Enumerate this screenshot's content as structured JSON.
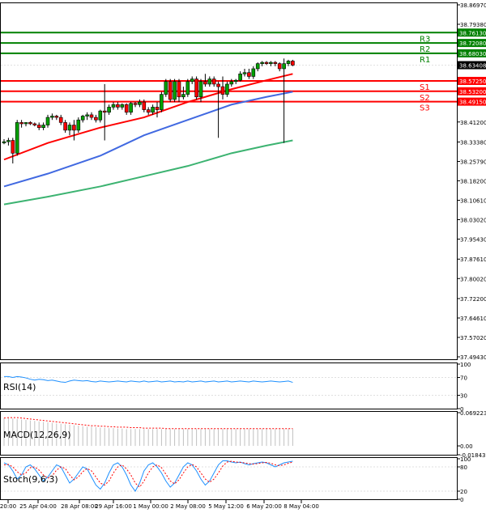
{
  "chart_data": {
    "type": "candlestick",
    "price_axis": {
      "ticks": [
        "38.86970",
        "38.79380",
        "38.71790",
        "38.64200",
        "38.56610",
        "38.49010",
        "38.41200",
        "38.33380",
        "38.25790",
        "38.18200",
        "38.10610",
        "38.03020",
        "37.95430",
        "37.87610",
        "37.80020",
        "37.72200",
        "37.64610",
        "37.57020",
        "37.49430"
      ],
      "ylim": [
        37.4943,
        38.8697
      ]
    },
    "time_axis": {
      "labels": [
        "20:00",
        "25 Apr 04:00",
        "28 Apr 08:00",
        "29 Apr 16:00",
        "1 May 00:00",
        "2 May 08:00",
        "5 May 12:00",
        "6 May 20:00",
        "8 May 04:00"
      ]
    },
    "levels": [
      {
        "name": "R3",
        "value": "38.76130",
        "color": "#008000"
      },
      {
        "name": "R2",
        "value": "38.72080",
        "color": "#008000"
      },
      {
        "name": "R1",
        "value": "38.68030",
        "color": "#008000"
      },
      {
        "name": "S1",
        "value": "38.57250",
        "color": "#ff0000"
      },
      {
        "name": "S2",
        "value": "38.53200",
        "color": "#ff0000"
      },
      {
        "name": "S3",
        "value": "38.49150",
        "color": "#ff0000"
      }
    ],
    "current_price": "38.63408",
    "candles": [
      [
        38.33,
        38.345,
        38.325,
        38.335
      ],
      [
        38.335,
        38.35,
        38.32,
        38.34
      ],
      [
        38.34,
        38.35,
        38.25,
        38.29
      ],
      [
        38.29,
        38.42,
        38.28,
        38.41
      ],
      [
        38.41,
        38.42,
        38.39,
        38.405
      ],
      [
        38.405,
        38.41,
        38.395,
        38.41
      ],
      [
        38.41,
        38.415,
        38.4,
        38.405
      ],
      [
        38.405,
        38.41,
        38.395,
        38.4
      ],
      [
        38.4,
        38.41,
        38.38,
        38.39
      ],
      [
        38.39,
        38.41,
        38.38,
        38.4
      ],
      [
        38.4,
        38.44,
        38.39,
        38.43
      ],
      [
        38.43,
        38.445,
        38.42,
        38.435
      ],
      [
        38.435,
        38.44,
        38.42,
        38.43
      ],
      [
        38.43,
        38.44,
        38.4,
        38.41
      ],
      [
        38.41,
        38.42,
        38.37,
        38.38
      ],
      [
        38.38,
        38.41,
        38.36,
        38.4
      ],
      [
        38.4,
        38.42,
        38.34,
        38.38
      ],
      [
        38.38,
        38.43,
        38.37,
        38.42
      ],
      [
        38.42,
        38.44,
        38.41,
        38.435
      ],
      [
        38.435,
        38.45,
        38.42,
        38.44
      ],
      [
        38.44,
        38.45,
        38.42,
        38.43
      ],
      [
        38.43,
        38.44,
        38.41,
        38.42
      ],
      [
        38.42,
        38.46,
        38.41,
        38.455
      ],
      [
        38.455,
        38.56,
        38.34,
        38.45
      ],
      [
        38.45,
        38.48,
        38.44,
        38.47
      ],
      [
        38.47,
        38.49,
        38.46,
        38.48
      ],
      [
        38.48,
        38.49,
        38.46,
        38.47
      ],
      [
        38.47,
        38.485,
        38.46,
        38.48
      ],
      [
        38.48,
        38.485,
        38.44,
        38.45
      ],
      [
        38.45,
        38.49,
        38.44,
        38.485
      ],
      [
        38.485,
        38.49,
        38.47,
        38.48
      ],
      [
        38.48,
        38.5,
        38.47,
        38.49
      ],
      [
        38.49,
        38.5,
        38.45,
        38.46
      ],
      [
        38.46,
        38.47,
        38.44,
        38.45
      ],
      [
        38.45,
        38.48,
        38.44,
        38.47
      ],
      [
        38.47,
        38.49,
        38.43,
        38.46
      ],
      [
        38.46,
        38.53,
        38.45,
        38.52
      ],
      [
        38.52,
        38.58,
        38.51,
        38.57
      ],
      [
        38.57,
        38.58,
        38.49,
        38.5
      ],
      [
        38.5,
        38.58,
        38.49,
        38.57
      ],
      [
        38.57,
        38.58,
        38.49,
        38.51
      ],
      [
        38.51,
        38.55,
        38.5,
        38.52
      ],
      [
        38.52,
        38.58,
        38.51,
        38.57
      ],
      [
        38.57,
        38.59,
        38.56,
        38.58
      ],
      [
        38.58,
        38.59,
        38.5,
        38.51
      ],
      [
        38.51,
        38.58,
        38.49,
        38.57
      ],
      [
        38.57,
        38.6,
        38.55,
        38.56
      ],
      [
        38.56,
        38.59,
        38.55,
        38.58
      ],
      [
        38.58,
        38.59,
        38.55,
        38.56
      ],
      [
        38.56,
        38.57,
        38.35,
        38.55
      ],
      [
        38.55,
        38.59,
        38.5,
        38.52
      ],
      [
        38.52,
        38.57,
        38.51,
        38.56
      ],
      [
        38.56,
        38.58,
        38.55,
        38.57
      ],
      [
        38.57,
        38.58,
        38.56,
        38.575
      ],
      [
        38.575,
        38.61,
        38.57,
        38.6
      ],
      [
        38.6,
        38.62,
        38.59,
        38.605
      ],
      [
        38.605,
        38.62,
        38.58,
        38.59
      ],
      [
        38.59,
        38.63,
        38.58,
        38.62
      ],
      [
        38.62,
        38.645,
        38.61,
        38.64
      ],
      [
        38.64,
        38.65,
        38.63,
        38.645
      ],
      [
        38.645,
        38.65,
        38.635,
        38.64
      ],
      [
        38.64,
        38.65,
        38.63,
        38.645
      ],
      [
        38.645,
        38.65,
        38.63,
        38.64
      ],
      [
        38.64,
        38.645,
        38.61,
        38.62
      ],
      [
        38.62,
        38.66,
        38.33,
        38.64
      ],
      [
        38.64,
        38.655,
        38.63,
        38.65
      ],
      [
        38.65,
        38.655,
        38.63,
        38.634
      ]
    ],
    "ma_series": [
      {
        "color": "#ff0000",
        "values": [
          [
            0,
            38.265
          ],
          [
            10,
            38.33
          ],
          [
            22,
            38.39
          ],
          [
            32,
            38.43
          ],
          [
            42,
            38.49
          ],
          [
            52,
            38.54
          ],
          [
            60,
            38.575
          ],
          [
            66,
            38.6
          ]
        ]
      },
      {
        "color": "#4169e1",
        "values": [
          [
            0,
            38.16
          ],
          [
            10,
            38.21
          ],
          [
            22,
            38.28
          ],
          [
            32,
            38.36
          ],
          [
            42,
            38.42
          ],
          [
            52,
            38.48
          ],
          [
            60,
            38.51
          ],
          [
            66,
            38.53
          ]
        ]
      },
      {
        "color": "#3cb371",
        "values": [
          [
            0,
            38.09
          ],
          [
            10,
            38.12
          ],
          [
            22,
            38.16
          ],
          [
            32,
            38.2
          ],
          [
            42,
            38.24
          ],
          [
            52,
            38.29
          ],
          [
            60,
            38.32
          ],
          [
            66,
            38.34
          ]
        ]
      }
    ],
    "indicators": [
      {
        "name": "RSI(14)",
        "ticks": [
          "100",
          "70",
          "30",
          "0"
        ],
        "ylim": [
          0,
          100
        ],
        "series_color": "#1e90ff",
        "values": [
          72,
          72,
          70,
          72,
          71,
          69,
          66,
          64,
          66,
          65,
          63,
          64,
          62,
          60,
          59,
          62,
          64,
          63,
          62,
          63,
          61,
          60,
          62,
          61,
          60,
          61,
          62,
          61,
          60,
          62,
          61,
          60,
          62,
          60,
          61,
          62,
          60,
          61,
          62,
          60,
          61,
          60,
          62,
          60,
          61,
          62,
          60,
          61,
          62,
          60,
          61,
          62,
          60,
          61,
          62,
          61,
          60,
          62,
          61,
          60,
          61,
          62,
          61,
          60,
          61,
          62,
          59
        ]
      },
      {
        "name": "MACD(12,26,9)",
        "ticks": [
          "0.069223",
          "0.00",
          "-0.018437"
        ],
        "ylim": [
          -0.018437,
          0.069223
        ],
        "series_color": "#ff0000",
        "histogram": [
          0.058,
          0.058,
          0.057,
          0.056,
          0.055,
          0.054,
          0.053,
          0.052,
          0.051,
          0.05,
          0.049,
          0.048,
          0.047,
          0.046,
          0.045,
          0.044,
          0.043,
          0.042,
          0.041,
          0.04,
          0.04,
          0.039,
          0.038,
          0.038,
          0.037,
          0.037,
          0.036,
          0.036,
          0.035,
          0.035,
          0.035,
          0.035,
          0.035,
          0.035,
          0.035,
          0.035,
          0.035,
          0.035,
          0.035,
          0.035,
          0.035,
          0.035,
          0.035,
          0.035,
          0.035,
          0.035,
          0.035,
          0.035,
          0.035,
          0.035,
          0.035,
          0.035,
          0.035,
          0.035,
          0.035,
          0.035,
          0.035,
          0.035,
          0.035,
          0.035,
          0.035,
          0.035,
          0.035,
          0.035,
          0.035,
          0.035,
          0.035
        ],
        "signal": [
          0.058,
          0.059,
          0.059,
          0.059,
          0.058,
          0.057,
          0.056,
          0.055,
          0.054,
          0.053,
          0.052,
          0.051,
          0.05,
          0.049,
          0.048,
          0.047,
          0.046,
          0.045,
          0.044,
          0.043,
          0.042,
          0.042,
          0.041,
          0.041,
          0.04,
          0.04,
          0.039,
          0.039,
          0.039,
          0.038,
          0.038,
          0.038,
          0.037,
          0.037,
          0.037,
          0.037,
          0.037,
          0.036,
          0.036,
          0.036,
          0.036,
          0.036,
          0.036,
          0.036,
          0.036,
          0.036,
          0.036,
          0.036,
          0.036,
          0.036,
          0.036,
          0.036,
          0.036,
          0.036,
          0.036,
          0.036,
          0.036,
          0.036,
          0.036,
          0.036,
          0.036,
          0.036,
          0.036,
          0.036,
          0.036,
          0.036,
          0.036
        ]
      },
      {
        "name": "Stoch(9,6,3)",
        "ticks": [
          "100",
          "80",
          "20",
          "0"
        ],
        "ylim": [
          0,
          100
        ],
        "series_color": "#1e90ff",
        "k": [
          90,
          85,
          70,
          50,
          60,
          80,
          85,
          75,
          60,
          45,
          55,
          70,
          85,
          80,
          60,
          40,
          50,
          65,
          80,
          75,
          55,
          35,
          25,
          40,
          65,
          85,
          90,
          80,
          60,
          35,
          20,
          40,
          70,
          85,
          90,
          80,
          65,
          45,
          30,
          40,
          60,
          80,
          90,
          85,
          70,
          50,
          35,
          45,
          65,
          85,
          95,
          95,
          92,
          90,
          92,
          88,
          85,
          88,
          90,
          92,
          90,
          85,
          80,
          85,
          90,
          92,
          94
        ],
        "d": [
          85,
          86,
          80,
          68,
          60,
          65,
          78,
          80,
          72,
          60,
          52,
          58,
          72,
          80,
          76,
          60,
          48,
          55,
          68,
          76,
          70,
          55,
          40,
          35,
          45,
          65,
          80,
          85,
          75,
          60,
          40,
          30,
          45,
          65,
          80,
          85,
          78,
          62,
          45,
          38,
          48,
          65,
          80,
          86,
          80,
          65,
          50,
          42,
          50,
          65,
          82,
          92,
          94,
          92,
          91,
          90,
          88,
          87,
          88,
          90,
          91,
          89,
          85,
          83,
          85,
          89,
          92
        ]
      }
    ]
  }
}
